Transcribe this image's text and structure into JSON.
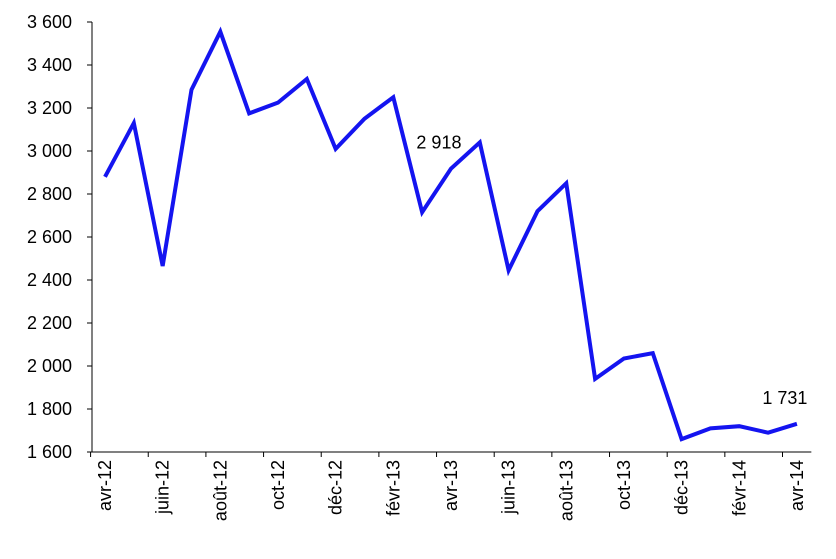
{
  "chart_data": {
    "type": "line",
    "categories": [
      "avr-12",
      null,
      "juin-12",
      null,
      "août-12",
      null,
      "oct-12",
      null,
      "déc-12",
      null,
      "févr-13",
      null,
      "avr-13",
      null,
      "juin-13",
      null,
      "août-13",
      null,
      "oct-13",
      null,
      "déc-13",
      null,
      "févr-14",
      null,
      "avr-14"
    ],
    "series": [
      {
        "color": "#1414f0",
        "values": [
          2880,
          3130,
          2465,
          3285,
          3555,
          3175,
          3225,
          3335,
          3010,
          3150,
          3250,
          2715,
          2918,
          3040,
          2445,
          2720,
          2850,
          1940,
          2035,
          2060,
          1660,
          1710,
          1720,
          1690,
          1731
        ],
        "value_labels": [
          null,
          null,
          null,
          null,
          null,
          null,
          null,
          null,
          null,
          null,
          null,
          null,
          "2 918",
          null,
          null,
          null,
          null,
          null,
          null,
          null,
          null,
          null,
          null,
          null,
          "1 731"
        ]
      }
    ],
    "ylim": [
      1600,
      3600
    ],
    "yticks": [
      {
        "value": 1600,
        "label": "1 600"
      },
      {
        "value": 1800,
        "label": "1 800"
      },
      {
        "value": 2000,
        "label": "2 000"
      },
      {
        "value": 2200,
        "label": "2 200"
      },
      {
        "value": 2400,
        "label": "2 400"
      },
      {
        "value": 2600,
        "label": "2 600"
      },
      {
        "value": 2800,
        "label": "2 800"
      },
      {
        "value": 3000,
        "label": "3 000"
      },
      {
        "value": 3200,
        "label": "3 200"
      },
      {
        "value": 3400,
        "label": "3 400"
      },
      {
        "value": 3600,
        "label": "3 600"
      }
    ]
  }
}
